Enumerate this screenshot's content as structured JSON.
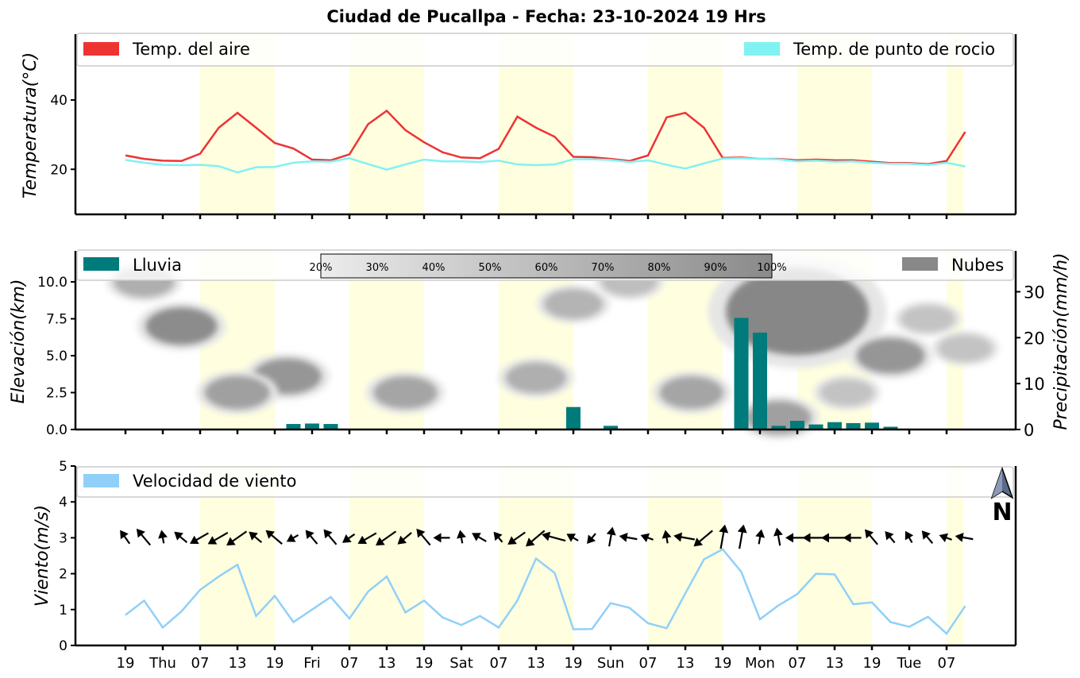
{
  "title": "Ciudad de Pucallpa   -   Fecha: 23-10-2024 19 Hrs",
  "x_tick_labels": [
    "19",
    "Thu",
    "07",
    "13",
    "19",
    "Fri",
    "07",
    "13",
    "19",
    "Sat",
    "07",
    "13",
    "19",
    "Sun",
    "07",
    "13",
    "19",
    "Mon",
    "07",
    "13",
    "19",
    "Tue",
    "07"
  ],
  "colors": {
    "air_temp": "#ee3333",
    "dew_point": "#80f2f2",
    "rain": "#007b7b",
    "clouds": "#888888",
    "wind": "#90d0f8",
    "daylight_band": "#ffffe0"
  },
  "chart_data": [
    {
      "type": "line",
      "title": "",
      "ylabel": "Temperatura(°C)",
      "ylim": [
        7,
        59
      ],
      "yticks": [
        "20",
        "40"
      ],
      "legend": {
        "left": "Temp. del aire",
        "right": "Temp. de punto de rocio",
        "placement": "top"
      },
      "x_step_hours": 3,
      "series": [
        {
          "name": "Temp. del aire",
          "values": [
            24,
            23,
            22.5,
            22.4,
            24.5,
            32,
            36.3,
            32,
            27.6,
            26,
            22.8,
            22.6,
            24.3,
            33,
            36.9,
            31.3,
            27.8,
            24.9,
            23.4,
            23.2,
            25.9,
            35.2,
            32,
            29.4,
            23.6,
            23.5,
            23,
            22.4,
            24,
            35,
            36.3,
            32,
            23.3,
            23.4,
            23,
            23,
            22.6,
            22.8,
            22.6,
            22.6,
            22.2,
            21.8,
            21.8,
            21.5,
            22.4,
            30.8
          ]
        },
        {
          "name": "Temp. de punto de rocio",
          "values": [
            22.7,
            21.9,
            21.3,
            21.2,
            21.3,
            20.9,
            19.1,
            20.6,
            20.7,
            21.9,
            22.3,
            22.2,
            23.2,
            21.5,
            19.9,
            21.4,
            22.8,
            22.3,
            22.3,
            22.1,
            22.5,
            21.4,
            21.2,
            21.4,
            22.9,
            22.9,
            22.7,
            22.1,
            22.6,
            21.3,
            20.2,
            21.7,
            23.1,
            23.2,
            23,
            22.9,
            22.3,
            22.5,
            22.2,
            22.3,
            21.9,
            21.6,
            21.6,
            21.3,
            21.9,
            20.8
          ]
        }
      ]
    },
    {
      "type": "bar",
      "title": "",
      "ylabel": "Elevación(km)",
      "ylabel_right": "Precipitación(mm/h)",
      "ylim": [
        0,
        12.1
      ],
      "yticks": [
        "0.0",
        "2.5",
        "5.0",
        "7.5",
        "10.0"
      ],
      "ylim_right": [
        0,
        38.9
      ],
      "yticks_right": [
        "0",
        "10",
        "20",
        "30"
      ],
      "legend": {
        "left": "Lluvia",
        "right": "Nubes",
        "placement": "top"
      },
      "colorbar_labels": [
        "20%",
        "30%",
        "40%",
        "50%",
        "60%",
        "70%",
        "80%",
        "90%",
        "100%"
      ],
      "rain_values": [
        0,
        0,
        0,
        0,
        0,
        0,
        0,
        0,
        0,
        1.2,
        1.3,
        1.2,
        0,
        0,
        0,
        0,
        0,
        0.1,
        0,
        0,
        0,
        0,
        0.1,
        0,
        4.9,
        0,
        0.8,
        0,
        0,
        0,
        0,
        0,
        0,
        24.3,
        21.1,
        0.8,
        1.9,
        1.1,
        1.6,
        1.4,
        1.5,
        0.6,
        0,
        0,
        0,
        0
      ],
      "cloud_areas": [
        {
          "center_hours": 3,
          "center_km": 10.0,
          "cover_pct": 60
        },
        {
          "center_hours": 9,
          "center_km": 7.0,
          "cover_pct": 95
        },
        {
          "center_hours": 26,
          "center_km": 3.6,
          "cover_pct": 85
        },
        {
          "center_hours": 18,
          "center_km": 2.5,
          "cover_pct": 75
        },
        {
          "center_hours": 45,
          "center_km": 2.5,
          "cover_pct": 70
        },
        {
          "center_hours": 66,
          "center_km": 3.5,
          "cover_pct": 60
        },
        {
          "center_hours": 72,
          "center_km": 8.5,
          "cover_pct": 55
        },
        {
          "center_hours": 81,
          "center_km": 10.0,
          "cover_pct": 45
        },
        {
          "center_hours": 91,
          "center_km": 2.5,
          "cover_pct": 70
        },
        {
          "center_hours": 108,
          "center_km": 8.0,
          "cover_pct": 100
        },
        {
          "center_hours": 105,
          "center_km": 0.8,
          "cover_pct": 75
        },
        {
          "center_hours": 116,
          "center_km": 2.5,
          "cover_pct": 40
        },
        {
          "center_hours": 123,
          "center_km": 5.0,
          "cover_pct": 85
        },
        {
          "center_hours": 129,
          "center_km": 7.5,
          "cover_pct": 40
        },
        {
          "center_hours": 135,
          "center_km": 5.5,
          "cover_pct": 40
        }
      ]
    },
    {
      "type": "line",
      "title": "",
      "ylabel": "Viento(m/s)",
      "ylim": [
        0,
        5
      ],
      "yticks": [
        "0",
        "1",
        "2",
        "3",
        "4",
        "5"
      ],
      "legend": {
        "left": "Velocidad de viento",
        "placement": "top-left"
      },
      "north_label": "N",
      "series": [
        {
          "name": "Velocidad de viento",
          "values": [
            0.85,
            1.25,
            0.5,
            0.95,
            1.55,
            1.92,
            2.25,
            0.82,
            1.38,
            0.65,
            1.0,
            1.35,
            0.75,
            1.5,
            1.92,
            0.92,
            1.25,
            0.78,
            0.57,
            0.82,
            0.5,
            1.25,
            2.42,
            2.02,
            0.45,
            0.46,
            1.18,
            1.05,
            0.62,
            0.48,
            1.45,
            2.4,
            2.68,
            2.05,
            0.73,
            1.12,
            1.43,
            2.0,
            1.98,
            1.15,
            1.2,
            0.65,
            0.52,
            0.8,
            0.33,
            1.1
          ]
        }
      ],
      "wind_direction_deg": [
        235,
        230,
        260,
        220,
        150,
        150,
        145,
        220,
        220,
        150,
        230,
        230,
        145,
        150,
        145,
        140,
        230,
        180,
        260,
        210,
        230,
        145,
        140,
        195,
        210,
        130,
        280,
        190,
        200,
        260,
        190,
        140,
        280,
        280,
        280,
        260,
        180,
        180,
        180,
        180,
        230,
        230,
        240,
        230,
        200,
        190
      ],
      "wind_arrow_strength": [
        0.5,
        0.8,
        0.3,
        0.5,
        0.8,
        0.9,
        1,
        0.5,
        0.8,
        0.3,
        0.6,
        0.7,
        0.4,
        0.8,
        1,
        0.6,
        0.8,
        0.5,
        0.3,
        0.5,
        0.3,
        0.8,
        1,
        1,
        0.3,
        0.3,
        0.7,
        0.6,
        0.3,
        0.3,
        0.8,
        1,
        1,
        1,
        0.4,
        0.6,
        0.8,
        1,
        1,
        0.6,
        0.7,
        0.4,
        0.3,
        0.5,
        0.3,
        0.6
      ]
    }
  ]
}
